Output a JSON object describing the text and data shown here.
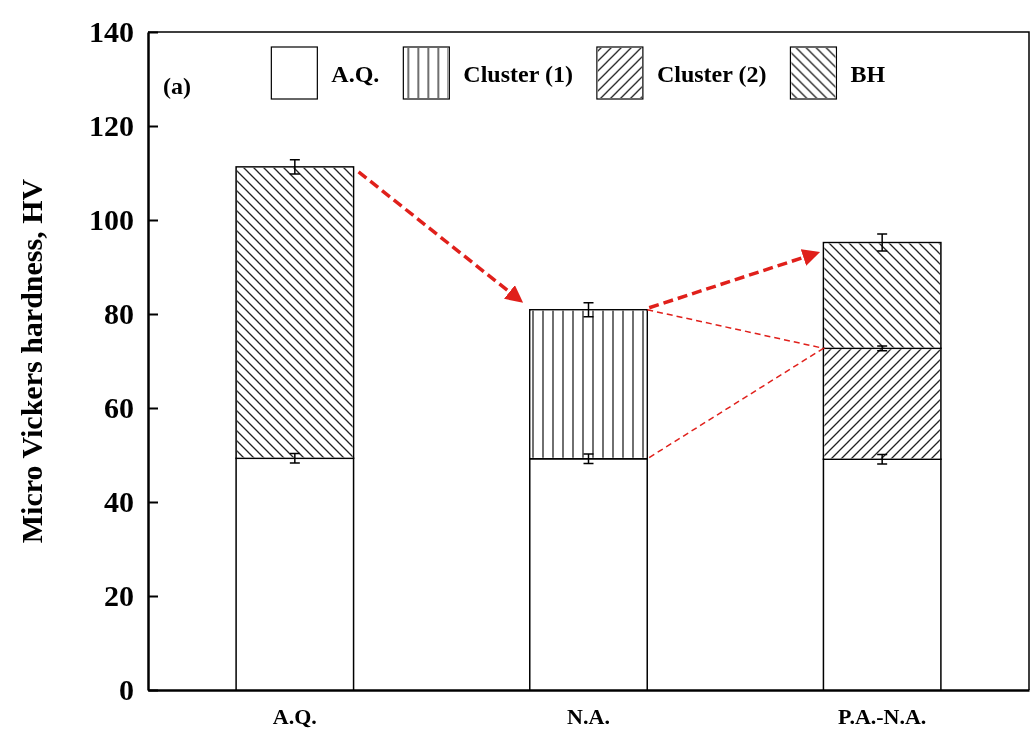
{
  "chart_data": {
    "type": "bar",
    "stacked": true,
    "categories": [
      "A.Q.",
      "N.A.",
      "P.A.-N.A."
    ],
    "ylabel": "Micro Vickers hardness, HV",
    "ylim": [
      0,
      140
    ],
    "yticks": [
      0,
      20,
      40,
      60,
      80,
      100,
      120,
      140
    ],
    "legend": "top",
    "annotations": [
      "(a)"
    ],
    "series": [
      {
        "name": "A.Q.",
        "color": "#ffffff",
        "values": [
          49.3,
          49.2,
          49.1
        ],
        "errors": [
          1,
          1,
          1
        ]
      },
      {
        "name": "Cluster (1)",
        "color": "#ffffff",
        "values": [
          null,
          31.7,
          null
        ],
        "errors": [
          null,
          1.5,
          null
        ]
      },
      {
        "name": "Cluster (2)",
        "color": "#ffffff",
        "values": [
          null,
          null,
          23.6
        ],
        "errors": [
          null,
          null,
          0.5
        ]
      },
      {
        "name": "BH",
        "color": "#ffffff",
        "values": [
          62,
          null,
          22.5
        ],
        "errors": [
          1.5,
          null,
          1.8
        ]
      }
    ]
  }
}
